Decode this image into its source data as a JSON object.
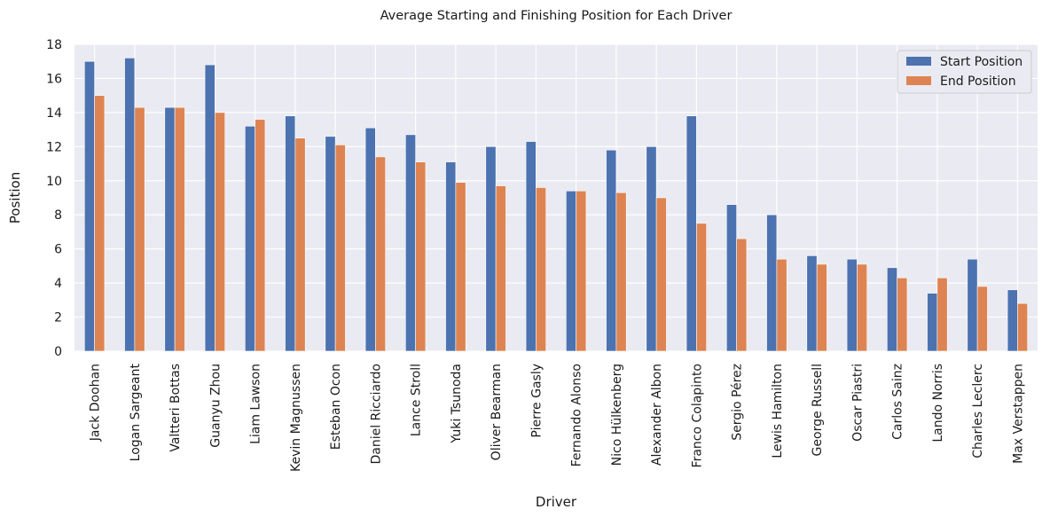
{
  "chart_data": {
    "type": "bar",
    "title": "Average Starting and Finishing Position for Each Driver",
    "xlabel": "Driver",
    "ylabel": "Position",
    "ylim": [
      0,
      18
    ],
    "yticks": [
      0,
      2,
      4,
      6,
      8,
      10,
      12,
      14,
      16,
      18
    ],
    "grid": true,
    "legend_position": "top-right",
    "categories": [
      "Jack Doohan",
      "Logan Sargeant",
      "Valtteri Bottas",
      "Guanyu Zhou",
      "Liam Lawson",
      "Kevin Magnussen",
      "Esteban Ocon",
      "Daniel Ricciardo",
      "Lance Stroll",
      "Yuki Tsunoda",
      "Oliver Bearman",
      "Pierre Gasly",
      "Fernando Alonso",
      "Nico Hülkenberg",
      "Alexander Albon",
      "Franco Colapinto",
      "Sergio Pérez",
      "Lewis Hamilton",
      "George Russell",
      "Oscar Piastri",
      "Carlos Sainz",
      "Lando Norris",
      "Charles Leclerc",
      "Max Verstappen"
    ],
    "series": [
      {
        "name": "Start Position",
        "color": "#4c72b0",
        "values": [
          17.0,
          17.2,
          14.3,
          16.8,
          13.2,
          13.8,
          12.6,
          13.1,
          12.7,
          11.1,
          12.0,
          12.3,
          9.4,
          11.8,
          12.0,
          13.8,
          8.6,
          8.0,
          5.6,
          5.4,
          4.9,
          3.4,
          5.4,
          3.6
        ]
      },
      {
        "name": "End Position",
        "color": "#dd8452",
        "values": [
          15.0,
          14.3,
          14.3,
          14.0,
          13.6,
          12.5,
          12.1,
          11.4,
          11.1,
          9.9,
          9.7,
          9.6,
          9.4,
          9.3,
          9.0,
          7.5,
          6.6,
          5.4,
          5.1,
          5.1,
          4.3,
          4.3,
          3.8,
          2.8
        ]
      }
    ]
  }
}
